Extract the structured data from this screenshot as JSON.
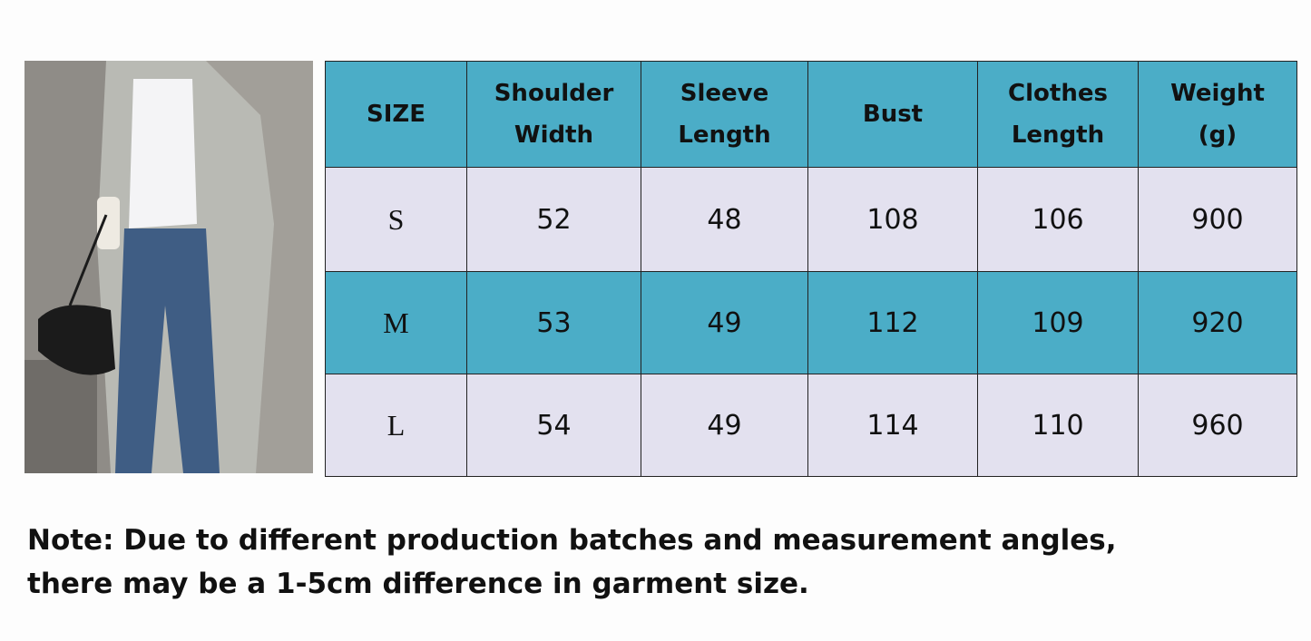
{
  "table": {
    "header": [
      [
        "SIZE"
      ],
      [
        "Shoulder",
        "Width"
      ],
      [
        "Sleeve",
        "Length"
      ],
      [
        "Bust"
      ],
      [
        "Clothes",
        "Length"
      ],
      [
        "Weight",
        "(g)"
      ]
    ],
    "rows": [
      [
        "S",
        "52",
        "48",
        "108",
        "106",
        "900"
      ],
      [
        "M",
        "53",
        "49",
        "112",
        "109",
        "920"
      ],
      [
        "L",
        "54",
        "49",
        "114",
        "110",
        "960"
      ]
    ]
  },
  "note": {
    "lines": [
      "Note: Due to different production batches and measurement angles,",
      "there may be a 1-5cm difference in garment size."
    ]
  }
}
